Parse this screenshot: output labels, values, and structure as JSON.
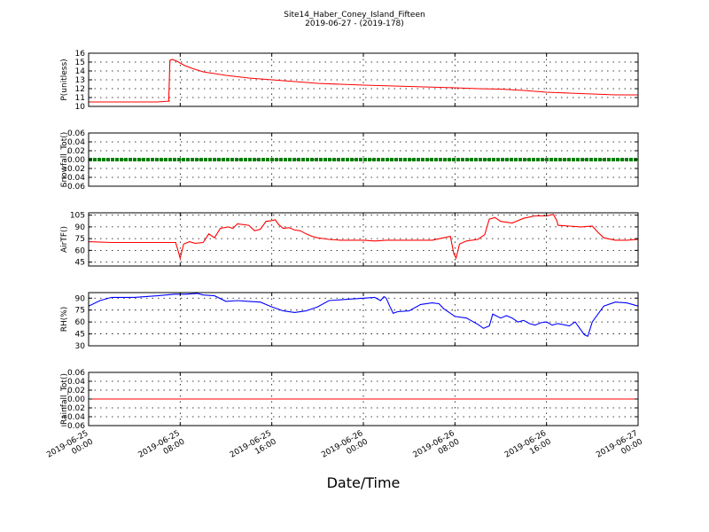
{
  "chart_data": {
    "type": "line",
    "title": "Site14_Haber_Coney_Island_Fifteen",
    "subtitle": "2019-06-27 - (2019-178)",
    "xlabel": "Date/Time",
    "x_ticks": [
      {
        "hours": 0,
        "line1": "2019-06-25",
        "line2": "00:00"
      },
      {
        "hours": 8,
        "line1": "2019-06-25",
        "line2": "08:00"
      },
      {
        "hours": 16,
        "line1": "2019-06-25",
        "line2": "16:00"
      },
      {
        "hours": 24,
        "line1": "2019-06-26",
        "line2": "00:00"
      },
      {
        "hours": 32,
        "line1": "2019-06-26",
        "line2": "08:00"
      },
      {
        "hours": 40,
        "line1": "2019-06-26",
        "line2": "16:00"
      },
      {
        "hours": 48,
        "line1": "2019-06-27",
        "line2": "00:00"
      }
    ],
    "xlim": [
      "2019-06-25 00:00",
      "2019-06-27 00:00"
    ],
    "grid": true,
    "panels": [
      {
        "ylabel": "P(unitless)",
        "ylim": [
          10,
          16
        ],
        "yticks": [
          10,
          11,
          12,
          13,
          14,
          15,
          16
        ],
        "color": "#ff0000",
        "style": "line",
        "points": [
          [
            0,
            10.5
          ],
          [
            3,
            10.5
          ],
          [
            6,
            10.5
          ],
          [
            7.1,
            10.6
          ],
          [
            7.0,
            10.6
          ],
          [
            7.1,
            15.2
          ],
          [
            7.3,
            15.3
          ],
          [
            7.7,
            15.1
          ],
          [
            8.4,
            14.6
          ],
          [
            9,
            14.3
          ],
          [
            10,
            13.9
          ],
          [
            11,
            13.7
          ],
          [
            12,
            13.5
          ],
          [
            14,
            13.2
          ],
          [
            16,
            13.0
          ],
          [
            18,
            12.8
          ],
          [
            20,
            12.6
          ],
          [
            24,
            12.4
          ],
          [
            28,
            12.25
          ],
          [
            32,
            12.1
          ],
          [
            34,
            12.0
          ],
          [
            36,
            11.95
          ],
          [
            38,
            11.8
          ],
          [
            40,
            11.6
          ],
          [
            42,
            11.5
          ],
          [
            44,
            11.4
          ],
          [
            46,
            11.3
          ],
          [
            48,
            11.3
          ]
        ]
      },
      {
        "ylabel": "Snowfall_Tot()",
        "ylim": [
          -0.06,
          0.06
        ],
        "yticks": [
          -0.06,
          -0.04,
          -0.02,
          0.0,
          0.02,
          0.04,
          0.06
        ],
        "tick_labels": [
          "−0.06",
          "−0.04",
          "−0.02",
          "0.00",
          "0.02",
          "0.04",
          "0.06"
        ],
        "color": "#008000",
        "style": "thick",
        "points": [
          [
            0,
            0
          ],
          [
            48,
            0
          ]
        ]
      },
      {
        "ylabel": "AirTF()",
        "ylim": [
          40,
          108
        ],
        "yticks": [
          45,
          60,
          75,
          90,
          105
        ],
        "color": "#ff0000",
        "style": "line",
        "points": [
          [
            0,
            71
          ],
          [
            2,
            70
          ],
          [
            4,
            70
          ],
          [
            6,
            70
          ],
          [
            7.6,
            70
          ],
          [
            7.8,
            60
          ],
          [
            8.0,
            50
          ],
          [
            8.3,
            68
          ],
          [
            8.8,
            71
          ],
          [
            9.3,
            69
          ],
          [
            10,
            70
          ],
          [
            10.5,
            81
          ],
          [
            11,
            76
          ],
          [
            11.5,
            88
          ],
          [
            12.2,
            90
          ],
          [
            12.6,
            88
          ],
          [
            13,
            94
          ],
          [
            14,
            92
          ],
          [
            14.5,
            85
          ],
          [
            15,
            87
          ],
          [
            15.5,
            97
          ],
          [
            16,
            98
          ],
          [
            16.3,
            99
          ],
          [
            16.6,
            93
          ],
          [
            17,
            88
          ],
          [
            17.5,
            89
          ],
          [
            18,
            86
          ],
          [
            18.5,
            85
          ],
          [
            19,
            81
          ],
          [
            19.5,
            78
          ],
          [
            20,
            76
          ],
          [
            21,
            74
          ],
          [
            22,
            73
          ],
          [
            24,
            73
          ],
          [
            25,
            72
          ],
          [
            26,
            73
          ],
          [
            27,
            73
          ],
          [
            28,
            73
          ],
          [
            30,
            73
          ],
          [
            31,
            76
          ],
          [
            31.6,
            78
          ],
          [
            31.9,
            56
          ],
          [
            32.1,
            50
          ],
          [
            32.4,
            68
          ],
          [
            33,
            72
          ],
          [
            34,
            74
          ],
          [
            34.6,
            80
          ],
          [
            35.0,
            100
          ],
          [
            35.5,
            102
          ],
          [
            36,
            97
          ],
          [
            37,
            95
          ],
          [
            38,
            101
          ],
          [
            39,
            104
          ],
          [
            40,
            104
          ],
          [
            40.6,
            106
          ],
          [
            40.9,
            98
          ],
          [
            41,
            92
          ],
          [
            42,
            91
          ],
          [
            43,
            90
          ],
          [
            44,
            91
          ],
          [
            44.5,
            83
          ],
          [
            45,
            76
          ],
          [
            46,
            73
          ],
          [
            47,
            73
          ],
          [
            48,
            74
          ]
        ]
      },
      {
        "ylabel": "RH(%)",
        "ylim": [
          30,
          97
        ],
        "yticks": [
          30,
          45,
          60,
          75,
          90
        ],
        "color": "#0000ff",
        "style": "line",
        "points": [
          [
            0,
            80
          ],
          [
            1,
            87
          ],
          [
            2,
            91
          ],
          [
            4,
            91
          ],
          [
            6,
            93
          ],
          [
            7.5,
            95
          ],
          [
            8.5,
            95
          ],
          [
            9.5,
            96
          ],
          [
            10,
            94
          ],
          [
            11,
            93
          ],
          [
            12,
            86
          ],
          [
            13,
            87
          ],
          [
            14,
            86
          ],
          [
            15,
            85
          ],
          [
            16,
            79
          ],
          [
            17,
            74
          ],
          [
            18,
            72
          ],
          [
            19,
            74
          ],
          [
            20,
            79
          ],
          [
            21,
            87
          ],
          [
            22,
            88
          ],
          [
            23,
            89
          ],
          [
            24,
            90
          ],
          [
            25,
            91
          ],
          [
            25.5,
            87
          ],
          [
            25.8,
            92
          ],
          [
            26,
            90
          ],
          [
            26.3,
            80
          ],
          [
            26.6,
            71
          ],
          [
            27,
            73
          ],
          [
            28,
            74
          ],
          [
            29,
            82
          ],
          [
            30,
            84
          ],
          [
            30.6,
            83
          ],
          [
            31,
            77
          ],
          [
            31.5,
            72
          ],
          [
            32,
            67
          ],
          [
            33,
            65
          ],
          [
            34,
            57
          ],
          [
            34.5,
            52
          ],
          [
            35,
            55
          ],
          [
            35.3,
            70
          ],
          [
            36,
            65
          ],
          [
            36.5,
            68
          ],
          [
            37,
            65
          ],
          [
            37.5,
            60
          ],
          [
            38,
            62
          ],
          [
            38.5,
            58
          ],
          [
            39,
            56
          ],
          [
            39.5,
            59
          ],
          [
            40,
            60
          ],
          [
            40.5,
            56
          ],
          [
            41,
            58
          ],
          [
            42,
            55
          ],
          [
            42.5,
            60
          ],
          [
            43,
            50
          ],
          [
            43.3,
            44
          ],
          [
            43.6,
            42
          ],
          [
            44,
            60
          ],
          [
            45,
            80
          ],
          [
            46,
            85
          ],
          [
            47,
            84
          ],
          [
            48,
            80
          ]
        ]
      },
      {
        "ylabel": "Rainfall_Tot()",
        "ylim": [
          -0.06,
          0.06
        ],
        "yticks": [
          -0.06,
          -0.04,
          -0.02,
          0.0,
          0.02,
          0.04,
          0.06
        ],
        "tick_labels": [
          "−0.06",
          "−0.04",
          "−0.02",
          "0.00",
          "0.02",
          "0.04",
          "0.06"
        ],
        "color": "#ff0000",
        "style": "line",
        "points": [
          [
            0,
            0
          ],
          [
            48,
            0
          ]
        ]
      }
    ]
  }
}
